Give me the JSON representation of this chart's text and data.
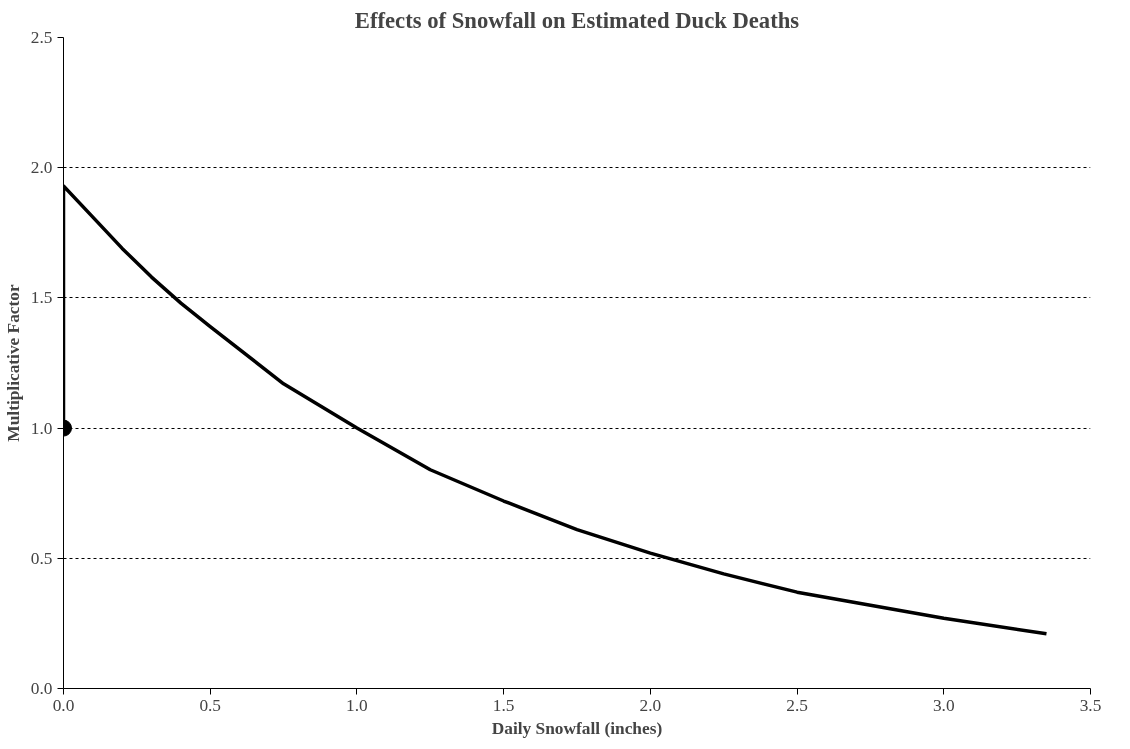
{
  "chart_data": {
    "type": "line",
    "title": "Effects of Snowfall on Estimated Duck Deaths",
    "xlabel": "Daily Snowfall (inches)",
    "ylabel": "Multiplicative Factor",
    "xlim": [
      0,
      3.5
    ],
    "ylim": [
      0,
      2.5
    ],
    "xticks": [
      {
        "value": 0,
        "label": "0.0"
      },
      0.5,
      {
        "value": 1,
        "label": "1.0"
      },
      1.5,
      {
        "value": 2,
        "label": "2.0"
      },
      2.5,
      {
        "value": 3,
        "label": "3.0"
      },
      3.5
    ],
    "yticks": [
      {
        "value": 0,
        "label": "0.0"
      },
      0.5,
      {
        "value": 1,
        "label": "1.0"
      },
      1.5,
      {
        "value": 2,
        "label": "2.0"
      },
      2.5
    ],
    "grid": "y",
    "series": [
      {
        "color": "#000000",
        "marker": "none",
        "x": [
          0,
          0,
          0.1,
          0.2,
          0.3,
          0.4,
          0.5,
          0.75,
          1.0,
          1.25,
          1.5,
          1.75,
          2.0,
          2.25,
          2.5,
          2.75,
          3.0,
          3.35
        ],
        "values": [
          1.0,
          1.93,
          1.81,
          1.69,
          1.58,
          1.48,
          1.39,
          1.17,
          1.0,
          0.84,
          0.72,
          0.61,
          0.52,
          0.44,
          0.37,
          0.32,
          0.27,
          0.21
        ]
      },
      {
        "type": "scatter",
        "color": "#000000",
        "marker": "circle",
        "x": [
          0
        ],
        "values": [
          1.0
        ]
      }
    ]
  }
}
